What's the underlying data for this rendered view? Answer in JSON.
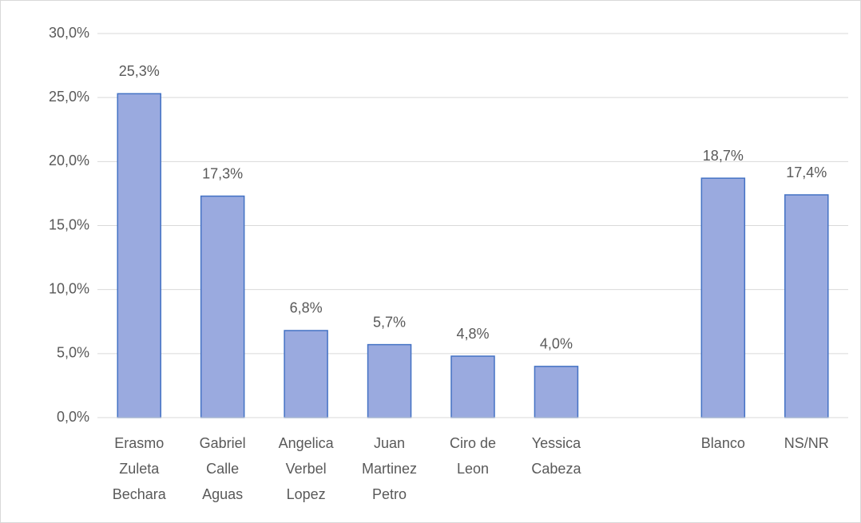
{
  "chart_data": {
    "type": "bar",
    "categories": [
      "Erasmo Zuleta Bechara",
      "Gabriel Calle Aguas",
      "Angelica Verbel Lopez",
      "Juan Martinez Petro",
      "Ciro de Leon",
      "Yessica Cabeza",
      null,
      "Blanco",
      "NS/NR"
    ],
    "values": [
      25.3,
      17.3,
      6.8,
      5.7,
      4.8,
      4.0,
      null,
      18.7,
      17.4
    ],
    "value_labels": [
      "25,3%",
      "17,3%",
      "6,8%",
      "5,7%",
      "4,8%",
      "4,0%",
      null,
      "18,7%",
      "17,4%"
    ],
    "color": "#9aaadf",
    "edge_color": "#4472c4",
    "ylim": [
      0,
      30
    ],
    "yticks": [
      {
        "value": 0,
        "label": "0,0%"
      },
      {
        "value": 5,
        "label": "5,0%"
      },
      {
        "value": 10,
        "label": "10,0%"
      },
      {
        "value": 15,
        "label": "15,0%"
      },
      {
        "value": 20,
        "label": "20,0%"
      },
      {
        "value": 25,
        "label": "25,0%"
      },
      {
        "value": 30,
        "label": "30,0%"
      }
    ],
    "grid": true
  }
}
